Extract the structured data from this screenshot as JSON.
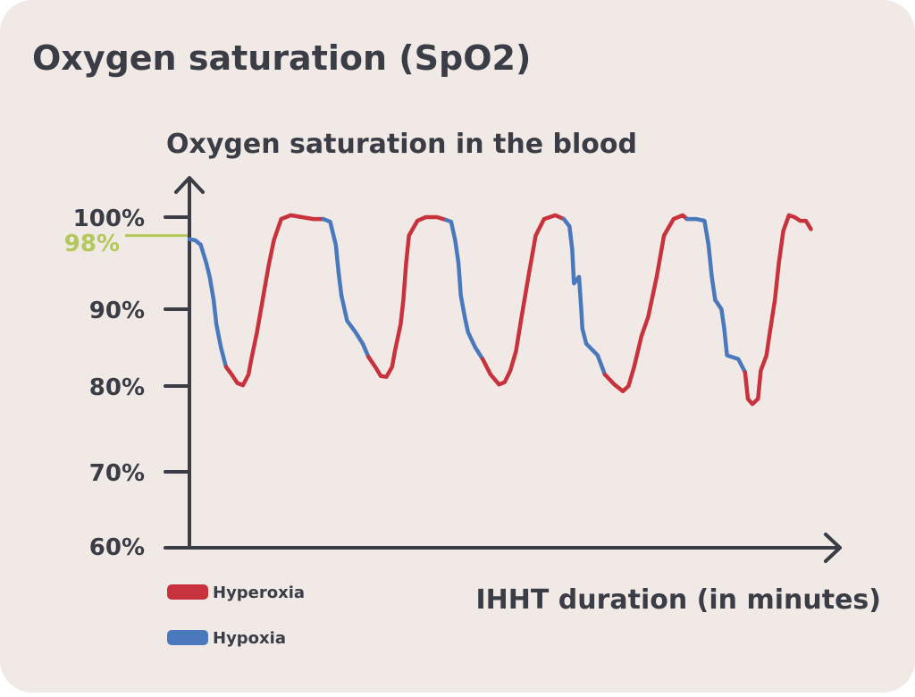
{
  "title": "Oxygen saturation (SpO2)",
  "colors": {
    "background": "#f0e9e5",
    "text": "#3a3d45",
    "axis": "#3a3d45",
    "hyperoxia": "#c8323c",
    "hypoxia": "#4a78bd",
    "reference": "#b3c85a"
  },
  "chart_data": {
    "type": "line",
    "ylabel": "Oxygen saturation in the blood",
    "xlabel": "IHHT duration (in minutes)",
    "y_ticks": [
      {
        "value": 100,
        "label": "100%"
      },
      {
        "value": 90,
        "label": "90%"
      },
      {
        "value": 80,
        "label": "80%"
      },
      {
        "value": 70,
        "label": "70%"
      },
      {
        "value": 60,
        "label": "60%"
      }
    ],
    "reference_line": {
      "value": 98,
      "label": "98%"
    },
    "legend": [
      {
        "name": "Hyperoxia",
        "color": "#c8323c"
      },
      {
        "name": "Hypoxia",
        "color": "#4a78bd"
      }
    ],
    "legend_placement": "bottom-left",
    "grid": false,
    "segments": [
      {
        "phase": "Hypoxia",
        "points": [
          [
            0,
            97.6
          ],
          [
            1,
            97.5
          ],
          [
            2,
            97
          ],
          [
            3,
            95
          ],
          [
            3.6,
            93.5
          ],
          [
            4.3,
            91
          ],
          [
            4.8,
            88
          ],
          [
            5.6,
            85
          ],
          [
            6.5,
            82.5
          ]
        ]
      },
      {
        "phase": "Hyperoxia",
        "points": [
          [
            6.5,
            82.5
          ],
          [
            7.5,
            81.5
          ],
          [
            8.5,
            80.4
          ],
          [
            9.5,
            80.1
          ],
          [
            10.5,
            81.5
          ],
          [
            11,
            83.5
          ],
          [
            12,
            87
          ],
          [
            13,
            91
          ],
          [
            14,
            94.5
          ],
          [
            15,
            97.5
          ],
          [
            16.3,
            99.8
          ],
          [
            18,
            100.2
          ],
          [
            20,
            100
          ],
          [
            22,
            99.8
          ],
          [
            23.8,
            99.8
          ]
        ]
      },
      {
        "phase": "Hypoxia",
        "points": [
          [
            23.8,
            99.8
          ],
          [
            25,
            99.5
          ],
          [
            26,
            97
          ],
          [
            26.5,
            94
          ],
          [
            27,
            91.5
          ],
          [
            28,
            88.5
          ],
          [
            29.5,
            87
          ],
          [
            30.8,
            85.5
          ],
          [
            31.8,
            83.8
          ]
        ]
      },
      {
        "phase": "Hyperoxia",
        "points": [
          [
            31.8,
            83.8
          ],
          [
            33,
            82.5
          ],
          [
            34,
            81.3
          ],
          [
            35,
            81.2
          ],
          [
            36,
            82.5
          ],
          [
            36.5,
            84.5
          ],
          [
            37.5,
            88
          ],
          [
            38,
            91
          ],
          [
            38.5,
            95
          ],
          [
            39,
            98
          ],
          [
            40.5,
            99.6
          ],
          [
            42,
            100
          ],
          [
            44,
            100
          ],
          [
            45.6,
            99.7
          ]
        ]
      },
      {
        "phase": "Hypoxia",
        "points": [
          [
            45.6,
            99.7
          ],
          [
            46.5,
            99.5
          ],
          [
            47.2,
            97.5
          ],
          [
            47.8,
            95
          ],
          [
            48.2,
            91.5
          ],
          [
            48.9,
            89
          ],
          [
            49.5,
            87
          ],
          [
            50.8,
            85
          ],
          [
            52.1,
            83.5
          ]
        ]
      },
      {
        "phase": "Hyperoxia",
        "points": [
          [
            52.1,
            83.5
          ],
          [
            53.5,
            81.5
          ],
          [
            55,
            80.2
          ],
          [
            56,
            80.5
          ],
          [
            57,
            82
          ],
          [
            58,
            84.5
          ],
          [
            59,
            89
          ],
          [
            60.2,
            93.5
          ],
          [
            61.5,
            98
          ],
          [
            63,
            99.8
          ],
          [
            65,
            100.2
          ],
          [
            66.5,
            99.8
          ]
        ]
      },
      {
        "phase": "Hypoxia",
        "points": [
          [
            66.5,
            99.8
          ],
          [
            67.5,
            99
          ],
          [
            68,
            96.5
          ],
          [
            68.3,
            92.8
          ],
          [
            69.2,
            93.5
          ],
          [
            69.6,
            90
          ],
          [
            69.8,
            87.5
          ],
          [
            70.5,
            85.5
          ],
          [
            72.5,
            84
          ],
          [
            73.8,
            81.5
          ]
        ]
      },
      {
        "phase": "Hyperoxia",
        "points": [
          [
            73.8,
            81.5
          ],
          [
            75.5,
            80.2
          ],
          [
            77,
            79.4
          ],
          [
            78,
            80
          ],
          [
            79,
            82.5
          ],
          [
            80.3,
            86.5
          ],
          [
            81.5,
            89
          ],
          [
            83,
            93.5
          ],
          [
            84.3,
            98
          ],
          [
            86,
            99.8
          ],
          [
            87.6,
            100.2
          ],
          [
            88.4,
            99.8
          ]
        ]
      },
      {
        "phase": "Hypoxia",
        "points": [
          [
            88.4,
            99.8
          ],
          [
            90,
            99.8
          ],
          [
            91.5,
            99.6
          ],
          [
            92.2,
            97
          ],
          [
            92.8,
            93.5
          ],
          [
            93.4,
            91
          ],
          [
            94.5,
            90
          ],
          [
            95,
            87.5
          ],
          [
            95.5,
            84
          ],
          [
            97.5,
            83.5
          ],
          [
            98.7,
            81.8
          ]
        ]
      },
      {
        "phase": "Hyperoxia",
        "points": [
          [
            98.7,
            81.8
          ],
          [
            99.2,
            78.5
          ],
          [
            100,
            77.9
          ],
          [
            101,
            78.5
          ],
          [
            101.5,
            82
          ],
          [
            102.5,
            84
          ],
          [
            103,
            86.5
          ],
          [
            104,
            91
          ],
          [
            104.7,
            95
          ],
          [
            105.5,
            98.5
          ],
          [
            106.5,
            100.2
          ],
          [
            107.5,
            100
          ],
          [
            108.5,
            99.6
          ],
          [
            109.5,
            99.6
          ],
          [
            110.4,
            98.7
          ]
        ]
      }
    ]
  },
  "legend_items": [
    "Hyperoxia",
    "Hypoxia"
  ]
}
